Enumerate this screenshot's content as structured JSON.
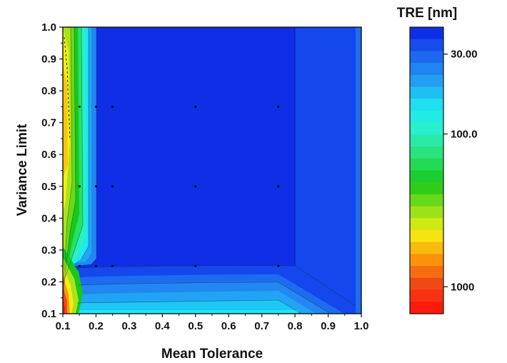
{
  "chart_data": {
    "type": "heatmap",
    "subtype": "contour",
    "xlabel": "Mean Tolerance",
    "ylabel": "Variance Limit",
    "xlim": [
      0.1,
      1.0
    ],
    "ylim": [
      0.1,
      1.0
    ],
    "xticks": [
      "0.1",
      "0.2",
      "0.3",
      "0.4",
      "0.5",
      "0.6",
      "0.7",
      "0.8",
      "0.9",
      "1.0"
    ],
    "yticks": [
      "0.1",
      "0.2",
      "0.3",
      "0.4",
      "0.5",
      "0.6",
      "0.7",
      "0.8",
      "0.9",
      "1.0"
    ],
    "colorbar": {
      "title": "TRE [nm]",
      "scale": "log",
      "range": [
        20,
        1500
      ],
      "reversed": true,
      "tick_labels": [
        "30.00",
        "100.0",
        "1000"
      ],
      "tick_values": [
        30,
        100,
        1000
      ],
      "color_stops": [
        "#0f2ee6",
        "#1d6cf0",
        "#22a4f4",
        "#1ee8f0",
        "#2af0c4",
        "#27e06a",
        "#16c81a",
        "#8ae01a",
        "#f5ee12",
        "#fb9a0a",
        "#f04b14",
        "#ff1a0c"
      ]
    },
    "sample_points": {
      "x": [
        0.15,
        0.2,
        0.25,
        0.5,
        0.75
      ],
      "y": [
        0.25,
        0.5,
        0.75
      ]
    },
    "regions": [
      {
        "region": "x 0.2-0.8, y 0.25-1.0",
        "tre_nm": 25
      },
      {
        "region": "x 0.8-1.0, y 0.25-1.0",
        "tre_nm": 30
      },
      {
        "region": "x 0.15-1.0, y 0.1-0.25",
        "tre_nm_range": [
          30,
          80
        ]
      },
      {
        "region": "x 0.1-0.2, y 0.1-1.0",
        "tre_nm_range": [
          40,
          1500
        ]
      }
    ]
  }
}
